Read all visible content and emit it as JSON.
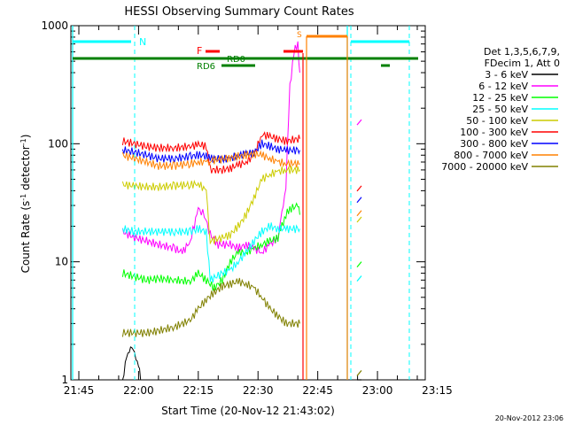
{
  "chart_data": {
    "type": "line",
    "title": "HESSI Observing Summary Count Rates",
    "xlabel": "Start Time (20-Nov-12 21:43:02)",
    "ylabel": "Count Rate (s",
    "ylabel_sup": "-1",
    "ylabel_rest": " detector",
    "ylabel_end": ")",
    "yscale": "log",
    "ylim": [
      1,
      1000
    ],
    "xlim_minutes": [
      -2,
      87
    ],
    "x_ticks": [
      {
        "label": "21:45",
        "minute": 0
      },
      {
        "label": "22:00",
        "minute": 15
      },
      {
        "label": "22:15",
        "minute": 30
      },
      {
        "label": "22:30",
        "minute": 45
      },
      {
        "label": "22:45",
        "minute": 60
      },
      {
        "label": "23:00",
        "minute": 75
      },
      {
        "label": "23:15",
        "minute": 90
      }
    ],
    "y_ticks": [
      {
        "label": "1",
        "value": 1
      },
      {
        "label": "10",
        "value": 10
      },
      {
        "label": "100",
        "value": 100
      },
      {
        "label": "1000",
        "value": 1000
      }
    ],
    "legend": {
      "placement": "right",
      "header": [
        "Det 1,3,5,6,7,9,",
        "FDecim 1, Att 0"
      ],
      "entries": [
        {
          "label": "3 - 6 keV",
          "color": "#000000"
        },
        {
          "label": "6 - 12 keV",
          "color": "#ff00ff"
        },
        {
          "label": "12 - 25 keV",
          "color": "#00ff00"
        },
        {
          "label": "25 - 50 keV",
          "color": "#00ffff"
        },
        {
          "label": "50 - 100 keV",
          "color": "#cccc00"
        },
        {
          "label": "100 - 300 keV",
          "color": "#ff0000"
        },
        {
          "label": "300 - 800 keV",
          "color": "#0000ff"
        },
        {
          "label": "800 - 7000 keV",
          "color": "#ff8000"
        },
        {
          "label": "7000 - 20000 keV",
          "color": "#808000"
        }
      ]
    },
    "series": [
      {
        "name": "3 - 6 keV",
        "color": "#000000",
        "points": [
          [
            11,
            1
          ],
          [
            12,
            1.5
          ],
          [
            13,
            2
          ],
          [
            14,
            1.6
          ],
          [
            15,
            1.4
          ],
          [
            15.5,
            1
          ]
        ]
      },
      {
        "name": "6 - 12 keV",
        "color": "#ff00ff",
        "points": [
          [
            11,
            18
          ],
          [
            14,
            16
          ],
          [
            17,
            15
          ],
          [
            20,
            14
          ],
          [
            24,
            13
          ],
          [
            26,
            12
          ],
          [
            28,
            15
          ],
          [
            30,
            28
          ],
          [
            31.5,
            25
          ],
          [
            33,
            17
          ],
          [
            35,
            14
          ],
          [
            38,
            14
          ],
          [
            40,
            13
          ],
          [
            42,
            14
          ],
          [
            44,
            13
          ],
          [
            46,
            12
          ],
          [
            48,
            14
          ],
          [
            50,
            16
          ],
          [
            51,
            25
          ],
          [
            52,
            45
          ],
          [
            53,
            300
          ],
          [
            54,
            600
          ],
          [
            55,
            700
          ],
          [
            55.5,
            400
          ]
        ]
      },
      {
        "name": "12 - 25 keV",
        "color": "#00ff00",
        "points": [
          [
            11,
            8
          ],
          [
            14,
            7.5
          ],
          [
            17,
            7
          ],
          [
            20,
            7.2
          ],
          [
            24,
            7
          ],
          [
            28,
            6.8
          ],
          [
            30,
            8
          ],
          [
            32,
            7
          ],
          [
            34,
            6
          ],
          [
            36,
            7
          ],
          [
            38,
            10
          ],
          [
            40,
            12
          ],
          [
            42,
            12
          ],
          [
            44,
            13
          ],
          [
            46,
            14
          ],
          [
            48,
            15
          ],
          [
            50,
            16
          ],
          [
            51,
            20
          ],
          [
            52,
            25
          ],
          [
            53,
            28
          ],
          [
            55,
            30
          ],
          [
            55.5,
            25
          ]
        ]
      },
      {
        "name": "25 - 50 keV",
        "color": "#00ffff",
        "points": [
          [
            11,
            19
          ],
          [
            14,
            18
          ],
          [
            17,
            18
          ],
          [
            20,
            18
          ],
          [
            24,
            18
          ],
          [
            28,
            18
          ],
          [
            30,
            19
          ],
          [
            32,
            18
          ],
          [
            33,
            7
          ],
          [
            36,
            8
          ],
          [
            38,
            8.5
          ],
          [
            40,
            10
          ],
          [
            42,
            12
          ],
          [
            44,
            15
          ],
          [
            46,
            18
          ],
          [
            48,
            20
          ],
          [
            50,
            19
          ],
          [
            52,
            19
          ],
          [
            55,
            19
          ],
          [
            55.5,
            19
          ]
        ]
      },
      {
        "name": "50 - 100 keV",
        "color": "#cccc00",
        "points": [
          [
            11,
            45
          ],
          [
            14,
            44
          ],
          [
            17,
            43
          ],
          [
            20,
            43
          ],
          [
            24,
            44
          ],
          [
            28,
            45
          ],
          [
            30,
            46
          ],
          [
            32,
            40
          ],
          [
            33,
            15
          ],
          [
            36,
            16
          ],
          [
            38,
            17
          ],
          [
            40,
            20
          ],
          [
            42,
            25
          ],
          [
            44,
            35
          ],
          [
            46,
            50
          ],
          [
            48,
            55
          ],
          [
            50,
            58
          ],
          [
            52,
            60
          ],
          [
            55,
            60
          ],
          [
            55.5,
            60
          ]
        ]
      },
      {
        "name": "100 - 300 keV",
        "color": "#ff0000",
        "points": [
          [
            11,
            105
          ],
          [
            14,
            100
          ],
          [
            17,
            95
          ],
          [
            20,
            92
          ],
          [
            24,
            92
          ],
          [
            28,
            95
          ],
          [
            30,
            98
          ],
          [
            32,
            96
          ],
          [
            33,
            60
          ],
          [
            36,
            60
          ],
          [
            38,
            62
          ],
          [
            40,
            66
          ],
          [
            42,
            70
          ],
          [
            44,
            80
          ],
          [
            46,
            120
          ],
          [
            48,
            115
          ],
          [
            50,
            110
          ],
          [
            52,
            105
          ],
          [
            55,
            110
          ],
          [
            55.5,
            110
          ]
        ]
      },
      {
        "name": "300 - 800 keV",
        "color": "#0000ff",
        "points": [
          [
            11,
            88
          ],
          [
            14,
            85
          ],
          [
            17,
            80
          ],
          [
            20,
            75
          ],
          [
            24,
            75
          ],
          [
            28,
            78
          ],
          [
            30,
            80
          ],
          [
            32,
            79
          ],
          [
            33,
            75
          ],
          [
            36,
            74
          ],
          [
            38,
            75
          ],
          [
            40,
            80
          ],
          [
            42,
            82
          ],
          [
            44,
            84
          ],
          [
            46,
            100
          ],
          [
            48,
            95
          ],
          [
            50,
            90
          ],
          [
            52,
            88
          ],
          [
            55,
            88
          ],
          [
            55.5,
            88
          ]
        ]
      },
      {
        "name": "800 - 7000 keV",
        "color": "#ff8000",
        "points": [
          [
            11,
            80
          ],
          [
            14,
            75
          ],
          [
            17,
            70
          ],
          [
            20,
            65
          ],
          [
            24,
            65
          ],
          [
            28,
            68
          ],
          [
            30,
            70
          ],
          [
            32,
            70
          ],
          [
            33,
            72
          ],
          [
            36,
            74
          ],
          [
            38,
            76
          ],
          [
            40,
            78
          ],
          [
            42,
            80
          ],
          [
            44,
            82
          ],
          [
            46,
            80
          ],
          [
            48,
            75
          ],
          [
            50,
            70
          ],
          [
            52,
            68
          ],
          [
            55,
            68
          ],
          [
            55.5,
            68
          ]
        ]
      },
      {
        "name": "7000 - 20000 keV",
        "color": "#808000",
        "points": [
          [
            11,
            2.5
          ],
          [
            14,
            2.5
          ],
          [
            17,
            2.5
          ],
          [
            20,
            2.6
          ],
          [
            24,
            2.8
          ],
          [
            28,
            3.2
          ],
          [
            30,
            4
          ],
          [
            32,
            4.8
          ],
          [
            34,
            5.5
          ],
          [
            36,
            6.2
          ],
          [
            38,
            6.5
          ],
          [
            40,
            6.8
          ],
          [
            42,
            6.5
          ],
          [
            44,
            6
          ],
          [
            46,
            5
          ],
          [
            48,
            4
          ],
          [
            50,
            3.5
          ],
          [
            52,
            3
          ],
          [
            55,
            3
          ],
          [
            55.5,
            3
          ]
        ]
      }
    ],
    "annotations": [
      {
        "label": "N",
        "color": "#00ffff"
      },
      {
        "label": "F",
        "color": "#ff0000"
      },
      {
        "label": "RD0",
        "color": "#008000"
      },
      {
        "label": "RD6",
        "color": "#008000"
      },
      {
        "label": "S",
        "color": "#ff8000"
      }
    ],
    "footer_timestamp": "20-Nov-2012 23:06"
  }
}
